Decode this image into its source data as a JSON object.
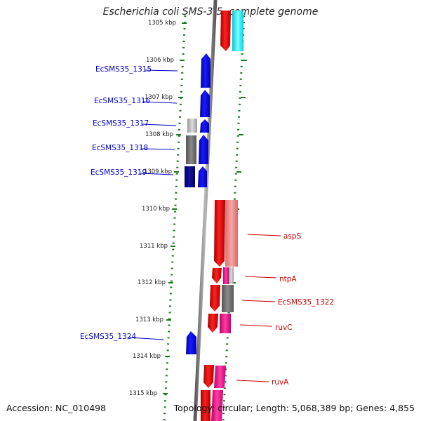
{
  "title": "Escherichia coli SMS-3-5, complete genome",
  "footer": {
    "accession": "Accession: NC_010498",
    "summary": "Topology: circular; Length: 5,068,389 bp; Genes: 4,855"
  },
  "ticks": [
    {
      "label": "1305 kbp"
    },
    {
      "label": "1306 kbp"
    },
    {
      "label": "1307 kbp"
    },
    {
      "label": "1308 kbp"
    },
    {
      "label": "1309 kbp"
    },
    {
      "label": "1310 kbp"
    },
    {
      "label": "1311 kbp"
    },
    {
      "label": "1312 kbp"
    },
    {
      "label": "1313 kbp"
    },
    {
      "label": "1314 kbp"
    },
    {
      "label": "1315 kbp"
    }
  ],
  "left_genes": [
    {
      "name": "EcSMS35_1315"
    },
    {
      "name": "EcSMS35_1316"
    },
    {
      "name": "EcSMS35_1317"
    },
    {
      "name": "EcSMS35_1318"
    },
    {
      "name": "EcSMS35_1319"
    },
    {
      "name": "EcSMS35_1324"
    }
  ],
  "right_genes": [
    {
      "name": "aspS"
    },
    {
      "name": "ntpA"
    },
    {
      "name": "EcSMS35_1322"
    },
    {
      "name": "ruvC"
    },
    {
      "name": "ruvA"
    }
  ],
  "colors": {
    "reverse_strand": "#0000ee",
    "forward_strand": "#ee0000",
    "axis": "#808080",
    "dotted_border": "#1a7a1a"
  }
}
